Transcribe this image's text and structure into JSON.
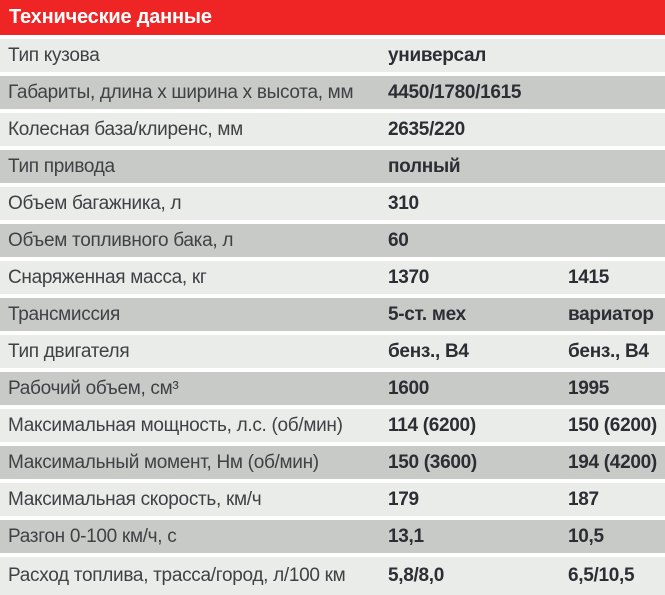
{
  "colors": {
    "red": "#ee2524",
    "row_light": "#e9ece9",
    "row_dark": "#c8cac7",
    "label_text": "#3f4245",
    "value_text": "#2b2e33",
    "header_text": "#ffffff",
    "background": "#ffffff"
  },
  "header": {
    "title": "Технические данные"
  },
  "table": {
    "rows": [
      {
        "label": "Тип кузова",
        "v1": "универсал",
        "v2": ""
      },
      {
        "label": "Габариты, длина х ширина х высота, мм",
        "v1": "4450/1780/1615",
        "v2": ""
      },
      {
        "label": "Колесная база/клиренс, мм",
        "v1": "2635/220",
        "v2": ""
      },
      {
        "label": "Тип привода",
        "v1": "полный",
        "v2": ""
      },
      {
        "label": "Объем багажника, л",
        "v1": "310",
        "v2": ""
      },
      {
        "label": "Объем топливного бака, л",
        "v1": "60",
        "v2": ""
      },
      {
        "label": "Снаряженная масса, кг",
        "v1": "1370",
        "v2": "1415"
      },
      {
        "label": "Трансмиссия",
        "v1": "5-ст. мех",
        "v2": "вариатор"
      },
      {
        "label": "Тип двигателя",
        "v1": "бенз., В4",
        "v2": "бенз., В4"
      },
      {
        "label": "Рабочий объем, см³",
        "v1": "1600",
        "v2": "1995"
      },
      {
        "label": "Максимальная мощность, л.с. (об/мин)",
        "v1": "114 (6200)",
        "v2": "150 (6200)"
      },
      {
        "label": "Максимальный момент, Нм (об/мин)",
        "v1": "150 (3600)",
        "v2": "194 (4200)"
      },
      {
        "label": "Максимальная скорость, км/ч",
        "v1": "179",
        "v2": "187"
      },
      {
        "label": "Разгон 0-100 км/ч, с",
        "v1": "13,1",
        "v2": "10,5"
      },
      {
        "label": "Расход топлива, трасса/город, л/100 км",
        "v1": "5,8/8,0",
        "v2": "6,5/10,5"
      }
    ]
  }
}
